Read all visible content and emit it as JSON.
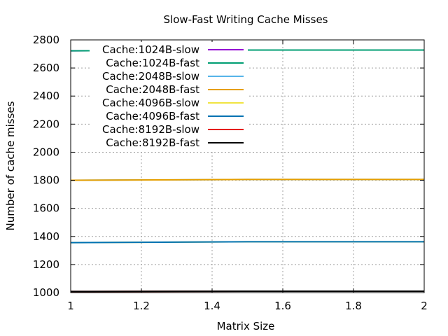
{
  "chart_data": {
    "type": "line",
    "title": "Slow-Fast Writing Cache Misses",
    "xlabel": "Matrix Size",
    "ylabel": "Number of cache misses",
    "xlim": [
      1,
      2
    ],
    "ylim": [
      1000,
      2800
    ],
    "x_ticks": [
      1,
      1.2,
      1.4,
      1.6,
      1.8,
      2
    ],
    "x_tick_labels": [
      "1",
      "1.2",
      "1.4",
      "1.6",
      "1.8",
      "2"
    ],
    "y_ticks": [
      1000,
      1200,
      1400,
      1600,
      1800,
      2000,
      2200,
      2400,
      2600,
      2800
    ],
    "y_tick_labels": [
      "1000",
      "1200",
      "1400",
      "1600",
      "1800",
      "2000",
      "2200",
      "2400",
      "2600",
      "2800"
    ],
    "grid": true,
    "legend_position": "top-left",
    "x": [
      1,
      1.5,
      2
    ],
    "series": [
      {
        "name": "Cache:1024B-slow",
        "color": "#9400d3",
        "values": [
          2722,
          2728,
          2728
        ]
      },
      {
        "name": "Cache:1024B-fast",
        "color": "#009e73",
        "values": [
          2722,
          2728,
          2728
        ]
      },
      {
        "name": "Cache:2048B-slow",
        "color": "#56b4e9",
        "values": [
          1800,
          1806,
          1806
        ]
      },
      {
        "name": "Cache:2048B-fast",
        "color": "#e69f00",
        "values": [
          1800,
          1806,
          1806
        ]
      },
      {
        "name": "Cache:4096B-slow",
        "color": "#f0e442",
        "values": [
          1356,
          1362,
          1362
        ]
      },
      {
        "name": "Cache:4096B-fast",
        "color": "#0072b2",
        "values": [
          1356,
          1362,
          1362
        ]
      },
      {
        "name": "Cache:8192B-slow",
        "color": "#e51e10",
        "values": [
          1008,
          1010,
          1010
        ]
      },
      {
        "name": "Cache:8192B-fast",
        "color": "#000000",
        "values": [
          1008,
          1010,
          1010
        ]
      }
    ]
  }
}
